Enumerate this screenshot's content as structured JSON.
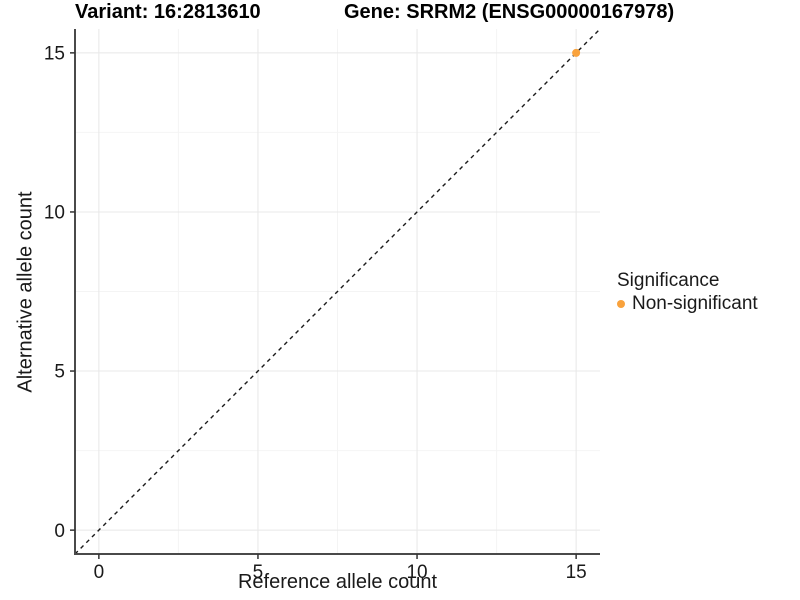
{
  "titles": {
    "variant": "Variant: 16:2813610",
    "gene": "Gene: SRRM2 (ENSG00000167978)"
  },
  "chart_data": {
    "type": "scatter",
    "xlabel": "Reference allele count",
    "ylabel": "Alternative allele count",
    "xlim": [
      -0.75,
      15.75
    ],
    "ylim": [
      -0.75,
      15.75
    ],
    "x_ticks": [
      0,
      5,
      10,
      15
    ],
    "y_ticks": [
      0,
      5,
      10,
      15
    ],
    "x_minor_ticks": [
      2.5,
      7.5,
      12.5
    ],
    "y_minor_ticks": [
      2.5,
      7.5,
      12.5
    ],
    "grid": true,
    "points": [
      {
        "x": 15,
        "y": 15,
        "series": "Non-significant"
      }
    ],
    "point_radius": 4,
    "series_colors": {
      "Non-significant": "#F9A23C"
    },
    "reference_line": {
      "slope": 1,
      "intercept": 0,
      "linetype": "dashed",
      "color": "#1a1a1a"
    },
    "legend_position": "right"
  },
  "legend": {
    "title": "Significance",
    "items": [
      {
        "label": "Non-significant",
        "color": "#F9A23C",
        "marker": "dot"
      }
    ]
  },
  "colors": {
    "background": "#ffffff",
    "grid_major": "#e8e8e8",
    "grid_minor": "#f4f4f4",
    "axis_line": "#4a4a4a",
    "tick_mark": "#333333",
    "tick_label": "#1a1a1a"
  }
}
